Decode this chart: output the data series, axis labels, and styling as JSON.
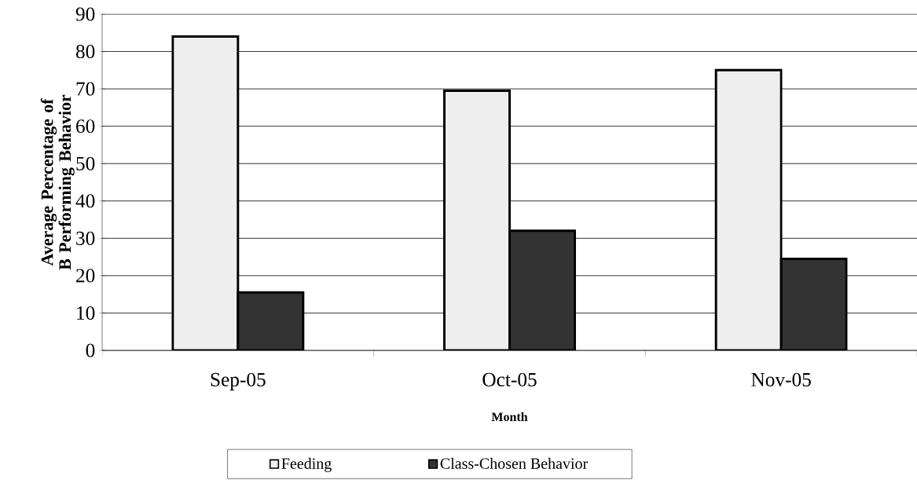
{
  "chart_data": {
    "type": "bar",
    "xlabel": "Month",
    "ylabel": "Average Percentage of B Performing Behavior",
    "categories": [
      "Sep-05",
      "Oct-05",
      "Nov-05"
    ],
    "series": [
      {
        "name": "Feeding",
        "color": "#eeeeee",
        "values": [
          84,
          69.5,
          75
        ]
      },
      {
        "name": "Class-Chosen Behavior",
        "color": "#333333",
        "values": [
          15.5,
          32,
          24.5
        ]
      }
    ],
    "ylim": [
      0,
      90
    ],
    "yticks": [
      0,
      10,
      20,
      30,
      40,
      50,
      60,
      70,
      80,
      90
    ],
    "grid": "y",
    "legend": "bottom"
  }
}
